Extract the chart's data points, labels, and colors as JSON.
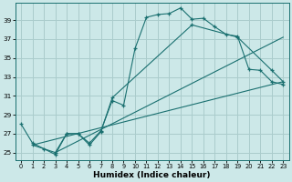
{
  "xlabel": "Humidex (Indice chaleur)",
  "bg_color": "#cce8e8",
  "grid_color": "#aacccc",
  "line_color": "#1a7070",
  "xlim": [
    -0.5,
    23.5
  ],
  "ylim": [
    24.2,
    40.8
  ],
  "yticks": [
    25,
    27,
    29,
    31,
    33,
    35,
    37,
    39
  ],
  "xticks": [
    0,
    1,
    2,
    3,
    4,
    5,
    6,
    7,
    8,
    9,
    10,
    11,
    12,
    13,
    14,
    15,
    16,
    17,
    18,
    19,
    20,
    21,
    22,
    23
  ],
  "series1_x": [
    0,
    1,
    2,
    3,
    4,
    5,
    6,
    7,
    8,
    9,
    10,
    11,
    12,
    13,
    14,
    15,
    16,
    17,
    18,
    19,
    20,
    21,
    22,
    23
  ],
  "series1_y": [
    28.0,
    26.0,
    25.4,
    24.8,
    27.0,
    27.0,
    26.0,
    27.3,
    30.5,
    30.0,
    36.0,
    39.3,
    39.6,
    39.7,
    40.3,
    39.1,
    39.2,
    38.3,
    37.5,
    37.3,
    33.8,
    33.7,
    32.5,
    32.2
  ],
  "series2_x": [
    1,
    3,
    4,
    5,
    6,
    7,
    8,
    15,
    19,
    22,
    23
  ],
  "series2_y": [
    25.8,
    25.0,
    27.0,
    27.0,
    25.8,
    27.2,
    30.8,
    38.5,
    37.2,
    33.7,
    32.5
  ],
  "series3_x": [
    1,
    23
  ],
  "series3_y": [
    25.8,
    32.5
  ],
  "series4_x": [
    3,
    23
  ],
  "series4_y": [
    25.0,
    37.2
  ]
}
